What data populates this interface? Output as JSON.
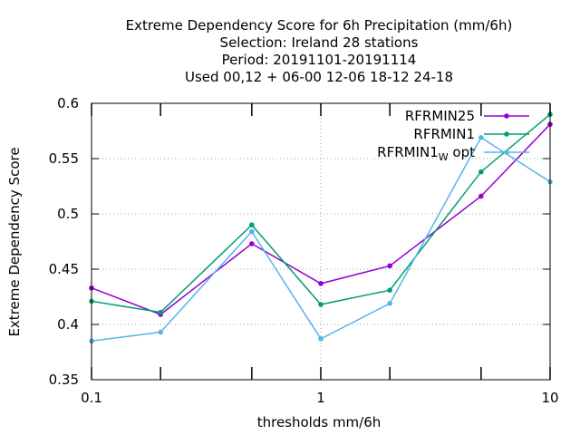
{
  "chart_data": {
    "type": "line",
    "title_lines": [
      "Extreme Dependency Score  for 6h Precipitation (mm/6h)",
      "Selection: Ireland      28 stations",
      "Period: 20191101-20191114",
      "Used  00,12  + 06-00 12-06 18-12 24-18"
    ],
    "xlabel": "thresholds mm/6h",
    "ylabel": "Extreme Dependency Score",
    "x_scale": "log",
    "xlim": [
      0.1,
      10
    ],
    "ylim": [
      0.35,
      0.6
    ],
    "x_ticks": [
      {
        "value": 0.1,
        "label": "0.1"
      },
      {
        "value": 1,
        "label": "1"
      },
      {
        "value": 10,
        "label": "10"
      }
    ],
    "x_minor_ticks": [
      0.2,
      0.5,
      2,
      5
    ],
    "y_ticks": [
      {
        "value": 0.35,
        "label": "0.35"
      },
      {
        "value": 0.4,
        "label": "0.4"
      },
      {
        "value": 0.45,
        "label": "0.45"
      },
      {
        "value": 0.5,
        "label": "0.5"
      },
      {
        "value": 0.55,
        "label": "0.55"
      },
      {
        "value": 0.6,
        "label": "0.6"
      }
    ],
    "grid": true,
    "legend_position": "top-right",
    "x": [
      0.1,
      0.2,
      0.5,
      1,
      2,
      5,
      10
    ],
    "series": [
      {
        "name": "RFRMIN25",
        "legend_main": "RFRMIN25",
        "legend_sub": "",
        "legend_tail": "",
        "color": "#9400d3",
        "values": [
          0.433,
          0.409,
          0.473,
          0.437,
          0.453,
          0.516,
          0.581
        ]
      },
      {
        "name": "RFRMIN1",
        "legend_main": "RFRMIN1",
        "legend_sub": "",
        "legend_tail": "",
        "color": "#009e73",
        "values": [
          0.421,
          0.411,
          0.49,
          0.418,
          0.431,
          0.538,
          0.59
        ]
      },
      {
        "name": "RFRMIN1_W opt",
        "legend_main": "RFRMIN1",
        "legend_sub": "W",
        "legend_tail": " opt",
        "color": "#56b4e9",
        "values": [
          0.385,
          0.393,
          0.484,
          0.387,
          0.419,
          0.569,
          0.529
        ]
      }
    ]
  }
}
